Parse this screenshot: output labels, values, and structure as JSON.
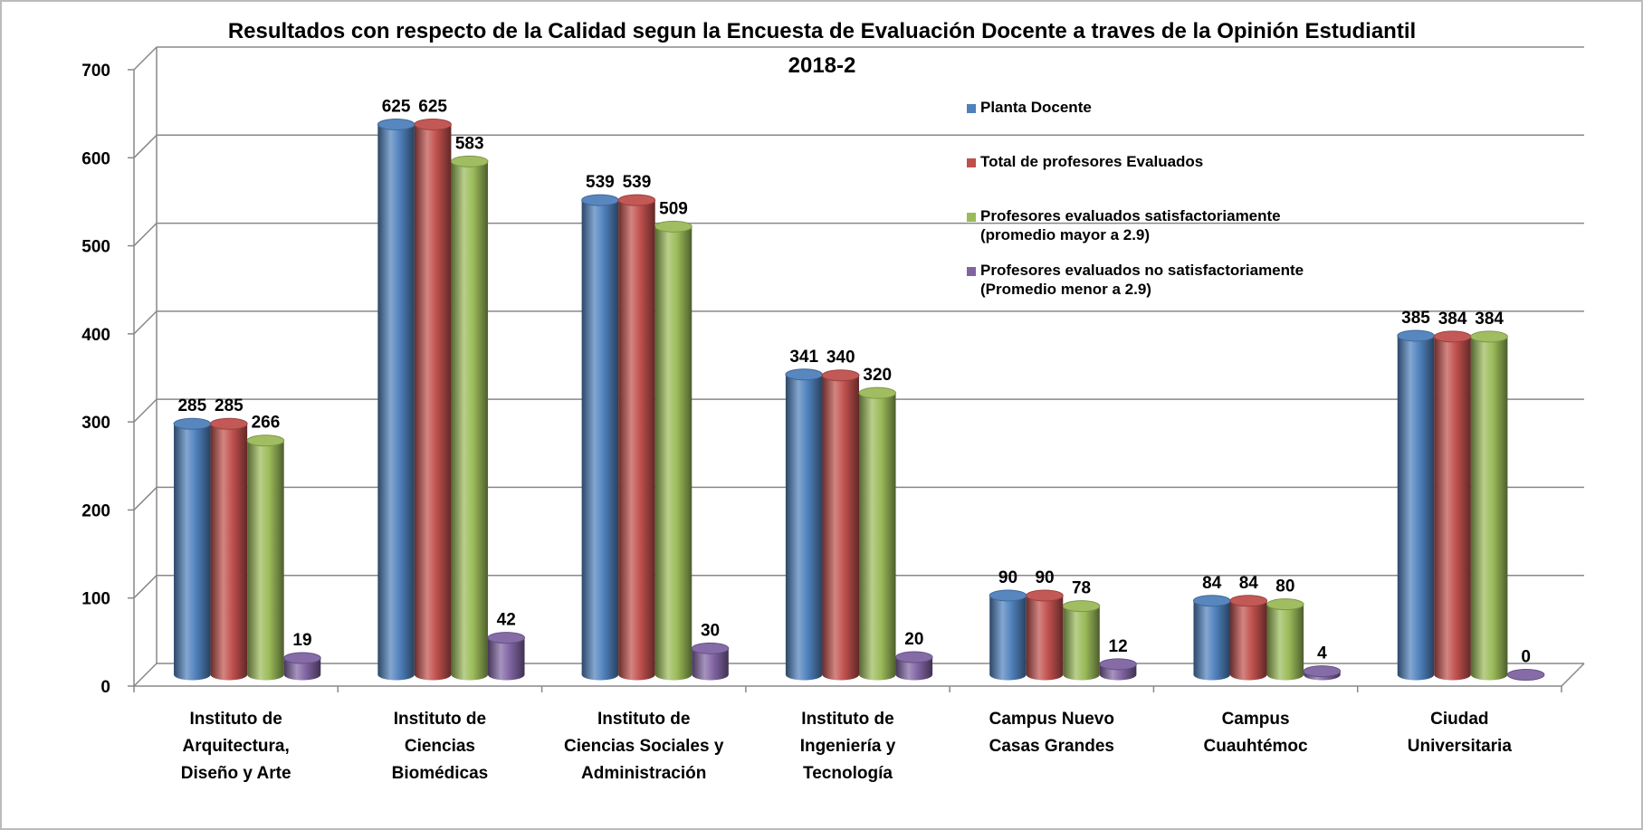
{
  "chart_data": {
    "type": "bar3d",
    "title": "Resultados con respecto de la Calidad segun la Encuesta de Evaluación Docente a traves de la Opinión Estudiantil",
    "subtitle": "2018-2",
    "categories": [
      [
        "Instituto de",
        "Arquitectura,",
        "Diseño y Arte"
      ],
      [
        "Instituto de",
        "Ciencias",
        "Biomédicas"
      ],
      [
        "Instituto de",
        "Ciencias Sociales y",
        "Administración"
      ],
      [
        "Instituto de",
        "Ingeniería y",
        "Tecnología"
      ],
      [
        "Campus Nuevo",
        "Casas Grandes"
      ],
      [
        "Campus",
        "Cuauhtémoc"
      ],
      [
        "Ciudad",
        "Universitaria"
      ]
    ],
    "series": [
      {
        "name": "Planta Docente",
        "color": "#4f81bd",
        "values": [
          285,
          625,
          539,
          341,
          90,
          84,
          385
        ]
      },
      {
        "name": "Total de profesores Evaluados",
        "color": "#c0504d",
        "values": [
          285,
          625,
          539,
          340,
          90,
          84,
          384
        ]
      },
      {
        "name": "Profesores evaluados satisfactoriamente (promedio mayor a 2.9)",
        "color": "#9bbb59",
        "values": [
          266,
          583,
          509,
          320,
          78,
          80,
          384
        ]
      },
      {
        "name": "Profesores evaluados no satisfactoriamente (Promedio menor a 2.9)",
        "color": "#8064a2",
        "values": [
          19,
          42,
          30,
          20,
          12,
          4,
          0
        ]
      }
    ],
    "ylim": [
      0,
      700
    ],
    "yticks": [
      0,
      100,
      200,
      300,
      400,
      500,
      600,
      700
    ],
    "grid": true,
    "legend": "upper right"
  }
}
